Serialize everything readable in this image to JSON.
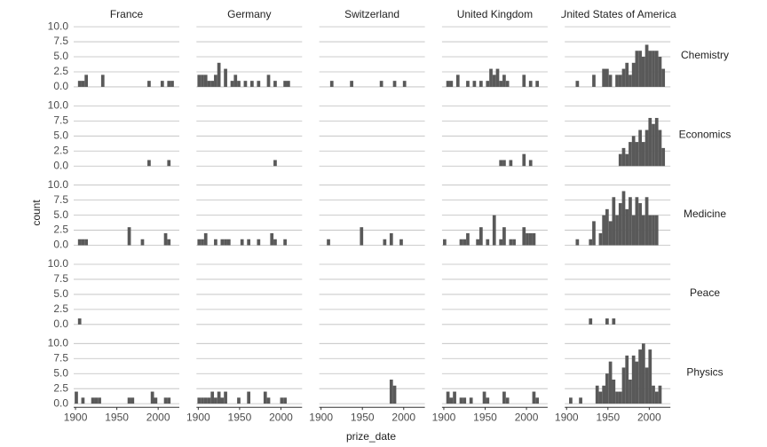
{
  "chart_data": {
    "type": "histogram",
    "x_label": "prize_date",
    "y_label": "count",
    "color": "#595959",
    "grid": true,
    "bins": [
      1899,
      1903,
      1907,
      1911,
      1915,
      1919,
      1923,
      1927,
      1931,
      1935,
      1939,
      1943,
      1947,
      1951,
      1955,
      1959,
      1963,
      1967,
      1971,
      1975,
      1979,
      1983,
      1987,
      1991,
      1995,
      1999,
      2003,
      2007,
      2011,
      2015,
      2019
    ],
    "xlim": [
      1897.8,
      2025.6
    ],
    "xticks": [
      1900,
      1950,
      2000
    ],
    "ylim": [
      -0.6,
      10.9
    ],
    "yticks": [
      {
        "value": 0,
        "label": "0.0"
      },
      {
        "value": 2.5,
        "label": "2.5"
      },
      {
        "value": 5,
        "label": "5.0"
      },
      {
        "value": 7.5,
        "label": "7.5"
      },
      {
        "value": 10,
        "label": "10.0"
      }
    ],
    "columns": [
      "France",
      "Germany",
      "Switzerland",
      "United Kingdom",
      "United States of America"
    ],
    "rows": [
      {
        "name": "Chemistry",
        "values": [
          [
            0,
            1,
            1,
            2,
            0,
            0,
            0,
            0,
            2,
            0,
            0,
            0,
            0,
            0,
            0,
            0,
            0,
            0,
            0,
            0,
            0,
            0,
            1,
            0,
            0,
            0,
            1,
            0,
            1,
            1
          ],
          [
            2,
            2,
            2,
            1,
            1,
            2,
            4,
            0,
            3,
            0,
            1,
            2,
            1,
            0,
            1,
            0,
            1,
            0,
            1,
            0,
            0,
            2,
            0,
            1,
            0,
            0,
            1,
            1,
            0,
            0
          ],
          [
            0,
            0,
            0,
            1,
            0,
            0,
            0,
            0,
            0,
            1,
            0,
            0,
            0,
            0,
            0,
            0,
            0,
            0,
            1,
            0,
            0,
            0,
            1,
            0,
            0,
            1,
            0,
            0,
            0,
            0
          ],
          [
            0,
            1,
            1,
            0,
            2,
            0,
            0,
            1,
            0,
            1,
            0,
            1,
            0,
            1,
            3,
            2,
            3,
            1,
            2,
            1,
            0,
            0,
            0,
            0,
            2,
            0,
            1,
            0,
            1,
            0
          ],
          [
            0,
            0,
            0,
            1,
            0,
            0,
            0,
            0,
            2,
            0,
            0,
            3,
            3,
            2,
            0,
            2,
            2,
            3,
            4,
            2,
            4,
            6,
            6,
            5,
            7,
            6,
            6,
            6,
            5,
            3
          ]
        ]
      },
      {
        "name": "Economics",
        "values": [
          [
            0,
            0,
            0,
            0,
            0,
            0,
            0,
            0,
            0,
            0,
            0,
            0,
            0,
            0,
            0,
            0,
            0,
            0,
            0,
            0,
            0,
            0,
            1,
            0,
            0,
            0,
            0,
            0,
            1,
            0
          ],
          [
            0,
            0,
            0,
            0,
            0,
            0,
            0,
            0,
            0,
            0,
            0,
            0,
            0,
            0,
            0,
            0,
            0,
            0,
            0,
            0,
            0,
            0,
            0,
            1,
            0,
            0,
            0,
            0,
            0,
            0
          ],
          [
            0,
            0,
            0,
            0,
            0,
            0,
            0,
            0,
            0,
            0,
            0,
            0,
            0,
            0,
            0,
            0,
            0,
            0,
            0,
            0,
            0,
            0,
            0,
            0,
            0,
            0,
            0,
            0,
            0,
            0
          ],
          [
            0,
            0,
            0,
            0,
            0,
            0,
            0,
            0,
            0,
            0,
            0,
            0,
            0,
            0,
            0,
            0,
            0,
            1,
            1,
            0,
            1,
            0,
            0,
            0,
            2,
            0,
            1,
            0,
            0,
            0
          ],
          [
            0,
            0,
            0,
            0,
            0,
            0,
            0,
            0,
            0,
            0,
            0,
            0,
            0,
            0,
            0,
            0,
            2,
            3,
            2,
            4,
            5,
            4,
            6,
            4,
            6,
            8,
            7,
            8,
            6,
            3
          ]
        ]
      },
      {
        "name": "Medicine",
        "values": [
          [
            0,
            1,
            1,
            1,
            0,
            0,
            0,
            0,
            0,
            0,
            0,
            0,
            0,
            0,
            0,
            0,
            3,
            0,
            0,
            0,
            1,
            0,
            0,
            0,
            0,
            0,
            0,
            2,
            1,
            0
          ],
          [
            1,
            1,
            2,
            0,
            0,
            1,
            0,
            1,
            1,
            1,
            0,
            0,
            0,
            1,
            0,
            1,
            0,
            0,
            1,
            0,
            0,
            0,
            2,
            1,
            0,
            0,
            1,
            0,
            0,
            0
          ],
          [
            0,
            0,
            1,
            0,
            0,
            0,
            0,
            0,
            0,
            0,
            0,
            0,
            3,
            0,
            0,
            0,
            0,
            0,
            0,
            1,
            0,
            2,
            0,
            0,
            1,
            0,
            0,
            0,
            0,
            0
          ],
          [
            1,
            0,
            0,
            0,
            0,
            1,
            1,
            2,
            0,
            0,
            1,
            3,
            0,
            1,
            0,
            5,
            0,
            1,
            3,
            0,
            1,
            1,
            0,
            0,
            3,
            2,
            2,
            2,
            0,
            0
          ],
          [
            0,
            0,
            0,
            1,
            0,
            0,
            0,
            1,
            4,
            0,
            2,
            5,
            6,
            4,
            8,
            5,
            7,
            9,
            6,
            8,
            5,
            8,
            7,
            5,
            8,
            5,
            5,
            5,
            0,
            0
          ]
        ]
      },
      {
        "name": "Peace",
        "values": [
          [
            0,
            1,
            0,
            0,
            0,
            0,
            0,
            0,
            0,
            0,
            0,
            0,
            0,
            0,
            0,
            0,
            0,
            0,
            0,
            0,
            0,
            0,
            0,
            0,
            0,
            0,
            0,
            0,
            0,
            0
          ],
          [
            0,
            0,
            0,
            0,
            0,
            0,
            0,
            0,
            0,
            0,
            0,
            0,
            0,
            0,
            0,
            0,
            0,
            0,
            0,
            0,
            0,
            0,
            0,
            0,
            0,
            0,
            0,
            0,
            0,
            0
          ],
          [
            0,
            0,
            0,
            0,
            0,
            0,
            0,
            0,
            0,
            0,
            0,
            0,
            0,
            0,
            0,
            0,
            0,
            0,
            0,
            0,
            0,
            0,
            0,
            0,
            0,
            0,
            0,
            0,
            0,
            0
          ],
          [
            0,
            0,
            0,
            0,
            0,
            0,
            0,
            0,
            0,
            0,
            0,
            0,
            0,
            0,
            0,
            0,
            0,
            0,
            0,
            0,
            0,
            0,
            0,
            0,
            0,
            0,
            0,
            0,
            0,
            0
          ],
          [
            0,
            0,
            0,
            0,
            0,
            0,
            0,
            1,
            0,
            0,
            0,
            0,
            1,
            0,
            1,
            0,
            0,
            0,
            0,
            0,
            0,
            0,
            0,
            0,
            0,
            0,
            0,
            0,
            0,
            0
          ]
        ]
      },
      {
        "name": "Physics",
        "values": [
          [
            2,
            0,
            1,
            0,
            0,
            1,
            1,
            1,
            0,
            0,
            0,
            0,
            0,
            0,
            0,
            0,
            1,
            1,
            0,
            0,
            0,
            0,
            0,
            2,
            1,
            0,
            0,
            1,
            1,
            0
          ],
          [
            1,
            1,
            1,
            1,
            2,
            1,
            2,
            1,
            2,
            0,
            0,
            0,
            1,
            0,
            0,
            2,
            0,
            0,
            0,
            0,
            2,
            1,
            0,
            0,
            0,
            1,
            1,
            0,
            0,
            0
          ],
          [
            0,
            0,
            0,
            0,
            0,
            0,
            0,
            0,
            0,
            0,
            0,
            0,
            0,
            0,
            0,
            0,
            0,
            0,
            0,
            0,
            0,
            4,
            3,
            0,
            0,
            0,
            0,
            0,
            0,
            0
          ],
          [
            0,
            2,
            1,
            2,
            0,
            1,
            1,
            0,
            1,
            0,
            0,
            0,
            2,
            1,
            0,
            0,
            0,
            0,
            2,
            1,
            0,
            0,
            0,
            0,
            0,
            0,
            0,
            2,
            1,
            0
          ],
          [
            0,
            1,
            0,
            0,
            1,
            0,
            0,
            0,
            0,
            3,
            2,
            3,
            5,
            7,
            4,
            2,
            2,
            6,
            8,
            4,
            8,
            7,
            9,
            10,
            6,
            9,
            3,
            2,
            3,
            0
          ]
        ]
      }
    ]
  }
}
